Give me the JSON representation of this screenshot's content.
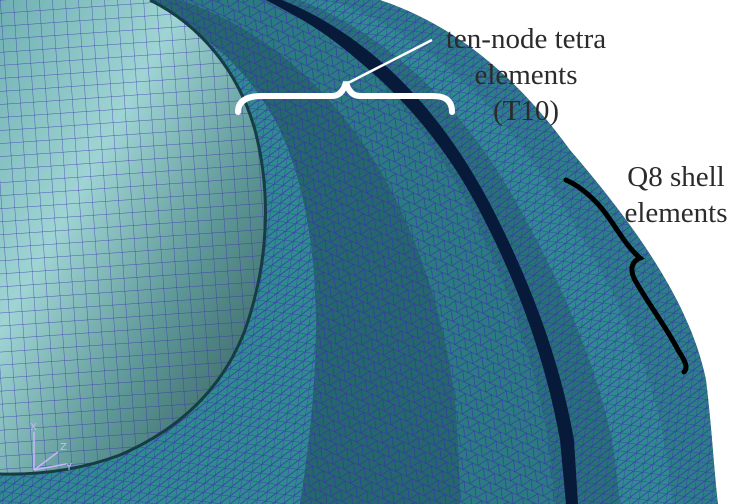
{
  "annotations": {
    "tetra": {
      "line1": "ten-node tetra",
      "line2": "elements",
      "line3": "(T10)"
    },
    "shell": {
      "line1": "Q8 shell",
      "line2": "elements"
    }
  },
  "triad": {
    "x_label": "X",
    "y_label": "Y",
    "z_label": "Z"
  },
  "colors": {
    "background": "#ffffff",
    "mesh_line": "#3a2fb0",
    "ring_dark": "#1f5a63",
    "ring_mid": "#2c7f86",
    "ring_light": "#3d9aa0",
    "sphere_light": "#8fc7c9",
    "sphere_dark": "#3f6b6a",
    "gap": "#081a3a",
    "bracket": "#ffffff",
    "shell_bracket": "#000000",
    "triad": "#c9b6ff"
  }
}
